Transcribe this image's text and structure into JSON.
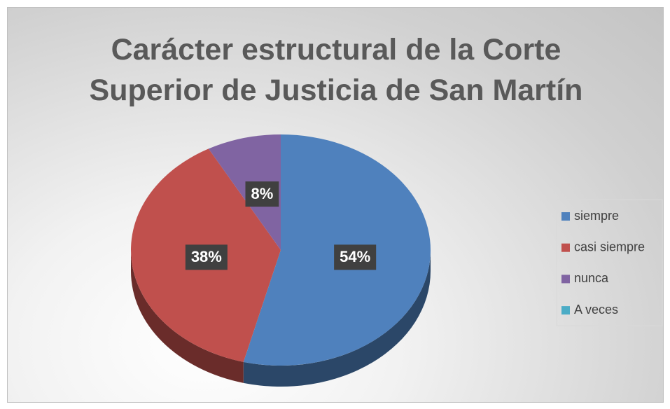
{
  "chart_data": {
    "type": "pie",
    "title": "Carácter estructural de la Corte Superior de Justicia de San Martín",
    "categories": [
      "siempre",
      "casi siempre",
      "nunca",
      "A veces"
    ],
    "values": [
      54,
      38,
      8,
      0
    ],
    "value_labels": [
      "54%",
      "38%",
      "8%",
      null
    ],
    "colors": [
      "#4f81bd",
      "#c0504d",
      "#8064a2",
      "#4bacc6"
    ],
    "legend": "right"
  }
}
